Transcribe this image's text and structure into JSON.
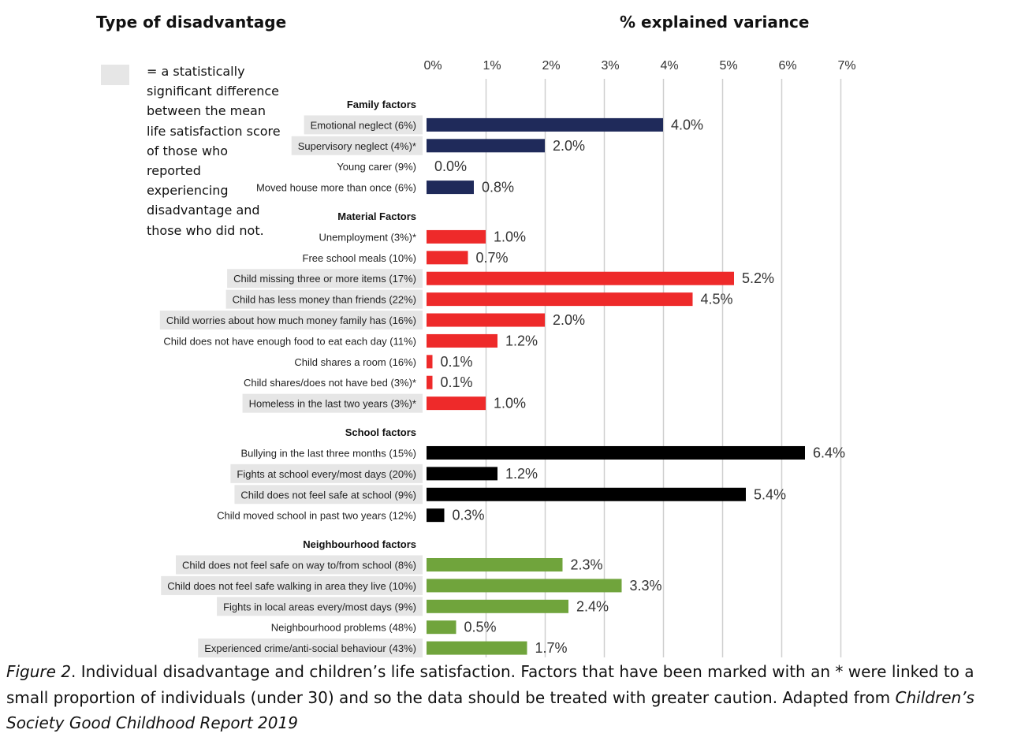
{
  "headers": {
    "type_of_disadvantage": "Type of disadvantage",
    "explained_variance": "% explained variance"
  },
  "legend": {
    "text": "= a statistically significant difference between the mean life satisfaction score of those who reported experiencing disadvantage and those who did not.",
    "swatch_color": "#e6e6e6"
  },
  "caption": {
    "figure_label": "Figure 2",
    "text": ". Individual disadvantage and children’s life satisfaction. Factors that have been marked with an * were linked to a small proportion of individuals (under 30) and so the data should be treated with greater caution. Adapted from ",
    "source": "Children’s Society Good Childhood Report 2019"
  },
  "chart_data": {
    "type": "bar",
    "orientation": "horizontal",
    "xlim": [
      0,
      7
    ],
    "x_ticks": [
      "0%",
      "1%",
      "2%",
      "3%",
      "4%",
      "5%",
      "6%",
      "7%"
    ],
    "grid": true,
    "groups": [
      {
        "name": "Family factors",
        "color": "#1f2a5a",
        "items": [
          {
            "label": "Emotional neglect (6%)",
            "value": 4.0,
            "value_label": "4.0%",
            "significant": true
          },
          {
            "label": "Supervisory neglect (4%)*",
            "value": 2.0,
            "value_label": "2.0%",
            "significant": true
          },
          {
            "label": "Young carer (9%)",
            "value": 0.0,
            "value_label": "0.0%",
            "significant": false
          },
          {
            "label": "Moved house more than once (6%)",
            "value": 0.8,
            "value_label": "0.8%",
            "significant": false
          }
        ]
      },
      {
        "name": "Material Factors",
        "color": "#ee2a2a",
        "items": [
          {
            "label": "Unemployment (3%)*",
            "value": 1.0,
            "value_label": "1.0%",
            "significant": false
          },
          {
            "label": "Free school meals (10%)",
            "value": 0.7,
            "value_label": "0.7%",
            "significant": false
          },
          {
            "label": "Child missing three or more items (17%)",
            "value": 5.2,
            "value_label": "5.2%",
            "significant": true
          },
          {
            "label": "Child has less money than friends (22%)",
            "value": 4.5,
            "value_label": "4.5%",
            "significant": true
          },
          {
            "label": "Child worries about how much money family has (16%)",
            "value": 2.0,
            "value_label": "2.0%",
            "significant": true
          },
          {
            "label": "Child does not have enough food to eat each day (11%)",
            "value": 1.2,
            "value_label": "1.2%",
            "significant": false
          },
          {
            "label": "Child shares a room (16%)",
            "value": 0.1,
            "value_label": "0.1%",
            "significant": false
          },
          {
            "label": "Child shares/does not have bed (3%)*",
            "value": 0.1,
            "value_label": "0.1%",
            "significant": false
          },
          {
            "label": "Homeless in the last two years (3%)*",
            "value": 1.0,
            "value_label": "1.0%",
            "significant": true
          }
        ]
      },
      {
        "name": "School factors",
        "color": "#000000",
        "items": [
          {
            "label": "Bullying in the last three months (15%)",
            "value": 6.4,
            "value_label": "6.4%",
            "significant": false
          },
          {
            "label": "Fights at school every/most days (20%)",
            "value": 1.2,
            "value_label": "1.2%",
            "significant": true
          },
          {
            "label": "Child does not feel safe at school (9%)",
            "value": 5.4,
            "value_label": "5.4%",
            "significant": true
          },
          {
            "label": "Child moved school in past two years (12%)",
            "value": 0.3,
            "value_label": "0.3%",
            "significant": false
          }
        ]
      },
      {
        "name": "Neighbourhood factors",
        "color": "#70a43c",
        "items": [
          {
            "label": "Child does not feel safe on way to/from school (8%)",
            "value": 2.3,
            "value_label": "2.3%",
            "significant": true
          },
          {
            "label": "Child does not feel safe walking in area they live (10%)",
            "value": 3.3,
            "value_label": "3.3%",
            "significant": true
          },
          {
            "label": "Fights in local areas every/most days (9%)",
            "value": 2.4,
            "value_label": "2.4%",
            "significant": true
          },
          {
            "label": "Neighbourhood problems (48%)",
            "value": 0.5,
            "value_label": "0.5%",
            "significant": false
          },
          {
            "label": "Experienced crime/anti-social behaviour (43%)",
            "value": 1.7,
            "value_label": "1.7%",
            "significant": true
          }
        ]
      }
    ]
  }
}
